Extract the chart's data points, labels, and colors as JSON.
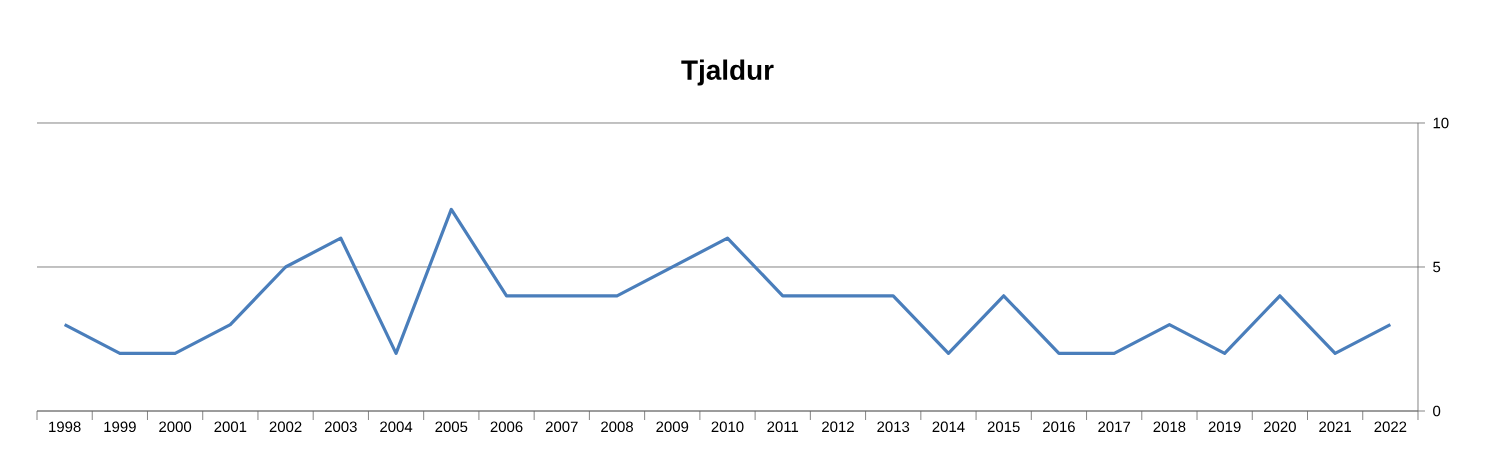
{
  "chart_data": {
    "type": "line",
    "title": "Tjaldur",
    "categories": [
      "1998",
      "1999",
      "2000",
      "2001",
      "2002",
      "2003",
      "2004",
      "2005",
      "2006",
      "2007",
      "2008",
      "2009",
      "2010",
      "2011",
      "2012",
      "2013",
      "2014",
      "2015",
      "2016",
      "2017",
      "2018",
      "2019",
      "2020",
      "2021",
      "2022"
    ],
    "series": [
      {
        "color": "#4a7ebb",
        "values": [
          3,
          2,
          2,
          3,
          5,
          6,
          2,
          7,
          4,
          4,
          4,
          5,
          6,
          4,
          4,
          4,
          2,
          4,
          2,
          2,
          3,
          2,
          4,
          2,
          3
        ]
      }
    ],
    "ylim": [
      0,
      10
    ],
    "yticks": [
      0,
      5,
      10
    ],
    "grid": "y"
  }
}
